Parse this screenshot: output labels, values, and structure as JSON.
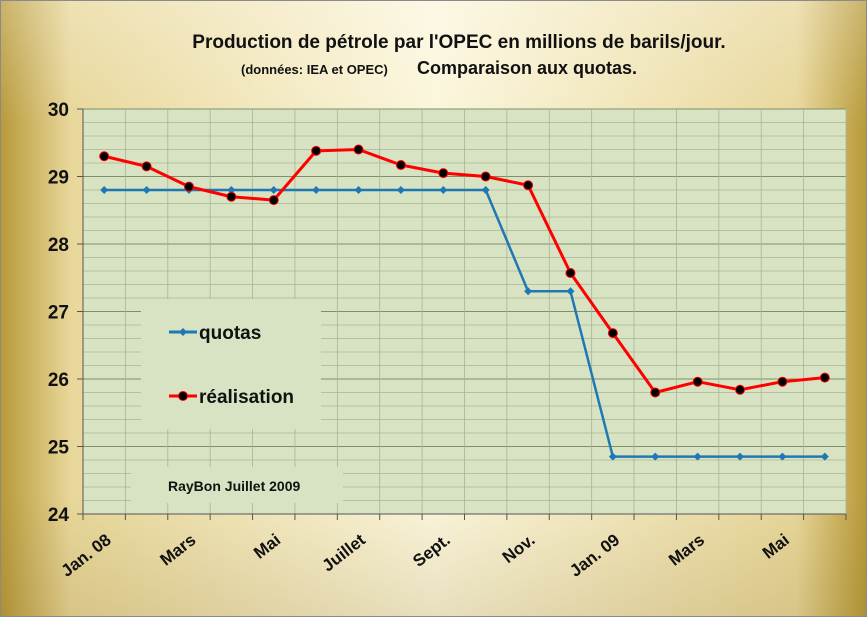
{
  "chart_data": {
    "type": "line",
    "title": "Production de pétrole par l'OPEC en millions de barils/jour.",
    "subtitle_small": "(données: IEA et OPEC)",
    "subtitle_big": "Comparaison aux quotas.",
    "credit": "RayBon Juillet  2009",
    "ylim": [
      24,
      30
    ],
    "y_ticks": [
      24,
      25,
      26,
      27,
      28,
      29,
      30
    ],
    "x_tick_labels": [
      "Jan. 08",
      "Mars",
      "Mai",
      "Juillet",
      "Sept.",
      "Nov.",
      "Jan. 09",
      "Mars",
      "Mai"
    ],
    "n_points": 18,
    "grid": true,
    "legend_position": "left-middle",
    "series": [
      {
        "name": "quotas",
        "color": "#1f78b4",
        "marker": "diamond",
        "values": [
          28.8,
          28.8,
          28.8,
          28.8,
          28.8,
          28.8,
          28.8,
          28.8,
          28.8,
          28.8,
          27.3,
          27.3,
          24.85,
          24.85,
          24.85,
          24.85,
          24.85,
          24.85
        ]
      },
      {
        "name": "réalisation",
        "color": "#ff0000",
        "marker": "circle",
        "values": [
          29.3,
          29.15,
          28.85,
          28.7,
          28.65,
          29.38,
          29.4,
          29.17,
          29.05,
          29.0,
          28.87,
          27.57,
          26.68,
          25.8,
          25.96,
          25.84,
          25.96,
          26.02
        ]
      }
    ]
  }
}
